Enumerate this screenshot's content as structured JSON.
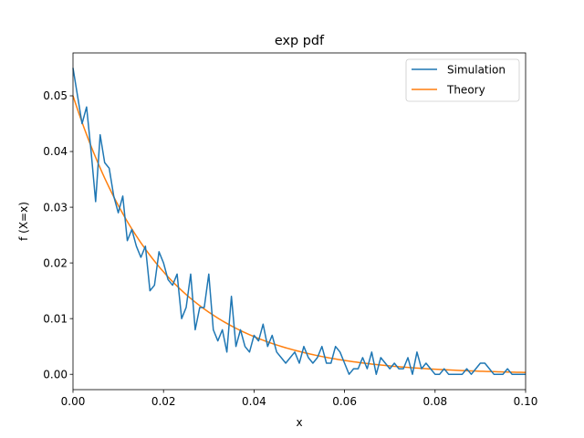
{
  "chart_data": {
    "type": "line",
    "title": "exp pdf",
    "xlabel": "x",
    "ylabel": "f (X=x)",
    "xlim": [
      0,
      0.1
    ],
    "ylim": [
      -0.00275,
      0.0577
    ],
    "xticks": [
      0,
      0.02,
      0.04,
      0.06,
      0.08,
      0.1
    ],
    "xtick_labels": [
      "0.00",
      "0.02",
      "0.04",
      "0.06",
      "0.08",
      "0.10"
    ],
    "yticks": [
      0,
      0.01,
      0.02,
      0.03,
      0.04,
      0.05
    ],
    "ytick_labels": [
      "0.00",
      "0.01",
      "0.02",
      "0.03",
      "0.04",
      "0.05"
    ],
    "grid": false,
    "legend_position": "top-right",
    "series": [
      {
        "name": "Simulation",
        "color": "#1f77b4",
        "x": [
          0,
          0.001,
          0.002,
          0.003,
          0.004,
          0.005,
          0.006,
          0.007,
          0.008,
          0.009,
          0.01,
          0.011,
          0.012,
          0.013,
          0.014,
          0.015,
          0.016,
          0.017,
          0.018,
          0.019,
          0.02,
          0.021,
          0.022,
          0.023,
          0.024,
          0.025,
          0.026,
          0.027,
          0.028,
          0.029,
          0.03,
          0.031,
          0.032,
          0.033,
          0.034,
          0.035,
          0.036,
          0.037,
          0.038,
          0.039,
          0.04,
          0.041,
          0.042,
          0.043,
          0.044,
          0.045,
          0.046,
          0.047,
          0.048,
          0.049,
          0.05,
          0.051,
          0.052,
          0.053,
          0.054,
          0.055,
          0.056,
          0.057,
          0.058,
          0.059,
          0.06,
          0.061,
          0.062,
          0.063,
          0.064,
          0.065,
          0.066,
          0.067,
          0.068,
          0.069,
          0.07,
          0.071,
          0.072,
          0.073,
          0.074,
          0.075,
          0.076,
          0.077,
          0.078,
          0.079,
          0.08,
          0.081,
          0.082,
          0.083,
          0.084,
          0.085,
          0.086,
          0.087,
          0.088,
          0.089,
          0.09,
          0.091,
          0.092,
          0.093,
          0.094,
          0.095,
          0.096,
          0.097,
          0.098,
          0.099,
          0.1
        ],
        "y": [
          0.055,
          0.05,
          0.045,
          0.048,
          0.04,
          0.031,
          0.043,
          0.038,
          0.037,
          0.032,
          0.029,
          0.032,
          0.024,
          0.026,
          0.023,
          0.021,
          0.023,
          0.015,
          0.016,
          0.022,
          0.02,
          0.017,
          0.016,
          0.018,
          0.01,
          0.012,
          0.018,
          0.008,
          0.012,
          0.012,
          0.018,
          0.008,
          0.006,
          0.008,
          0.004,
          0.014,
          0.005,
          0.008,
          0.005,
          0.004,
          0.007,
          0.006,
          0.009,
          0.005,
          0.007,
          0.004,
          0.003,
          0.002,
          0.003,
          0.004,
          0.002,
          0.005,
          0.003,
          0.002,
          0.003,
          0.005,
          0.002,
          0.002,
          0.005,
          0.004,
          0.002,
          0.0,
          0.001,
          0.001,
          0.003,
          0.001,
          0.004,
          0.0,
          0.003,
          0.002,
          0.001,
          0.002,
          0.001,
          0.001,
          0.003,
          0.0,
          0.004,
          0.001,
          0.002,
          0.001,
          0.0,
          0.0,
          0.001,
          0.0,
          0.0,
          0.0,
          0.0,
          0.001,
          0.0,
          0.001,
          0.002,
          0.002,
          0.001,
          0.0,
          0.0,
          0.0,
          0.001,
          0.0,
          0.0,
          0.0,
          0.0
        ]
      },
      {
        "name": "Theory",
        "color": "#ff7f0e",
        "function": "0.05*exp(-50*x)"
      }
    ]
  }
}
